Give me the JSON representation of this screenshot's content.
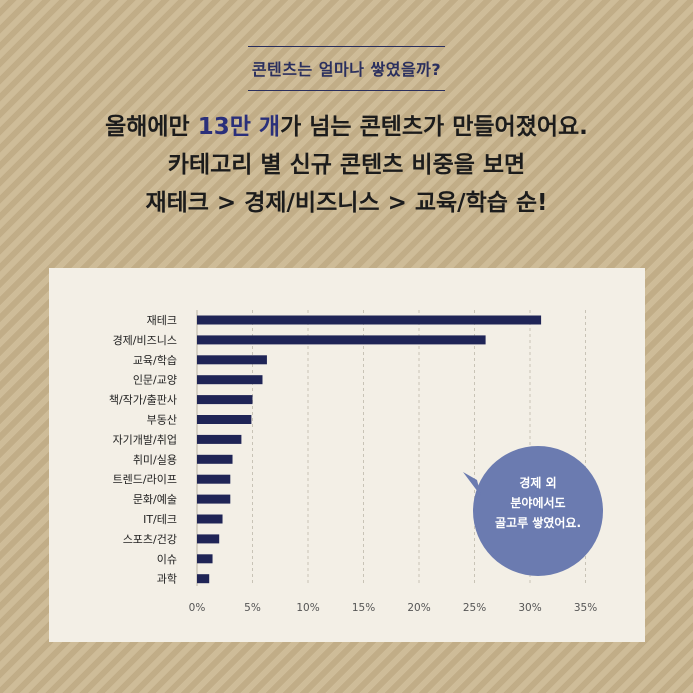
{
  "header": {
    "kicker": "콘텐츠는 얼마나 쌓였을까?",
    "line1_pre": "올해에만 ",
    "line1_highlight": "13만 개",
    "line1_post": "가 넘는 콘텐츠가 만들어졌어요.",
    "line2": "카테고리 별 신규 콘텐츠 비중을 보면",
    "line3": "재테크 > 경제/비즈니스 > 교육/학습 순!"
  },
  "callout": {
    "lines": [
      "경제 외",
      "분야에서도",
      "골고루 쌓였어요."
    ]
  },
  "colors": {
    "bar": "#1f2456",
    "callout": "#6b7bb0",
    "panel": "#f3efe6"
  },
  "chart_data": {
    "type": "bar",
    "orientation": "horizontal",
    "categories": [
      "재테크",
      "경제/비즈니스",
      "교육/학습",
      "인문/교양",
      "책/작가/출판사",
      "부동산",
      "자기개발/취업",
      "취미/실용",
      "트렌드/라이프",
      "문화/예술",
      "IT/테크",
      "스포츠/건강",
      "이슈",
      "과학"
    ],
    "values": [
      31,
      26,
      6.3,
      5.9,
      5.0,
      4.9,
      4.0,
      3.2,
      3.0,
      3.0,
      2.3,
      2.0,
      1.4,
      1.1
    ],
    "xlim": [
      0,
      35
    ],
    "xticks": [
      0,
      5,
      10,
      15,
      20,
      25,
      30,
      35
    ],
    "xtick_labels": [
      "0%",
      "5%",
      "10%",
      "15%",
      "20%",
      "25%",
      "30%",
      "35%"
    ],
    "grid": "vertical dashed"
  }
}
